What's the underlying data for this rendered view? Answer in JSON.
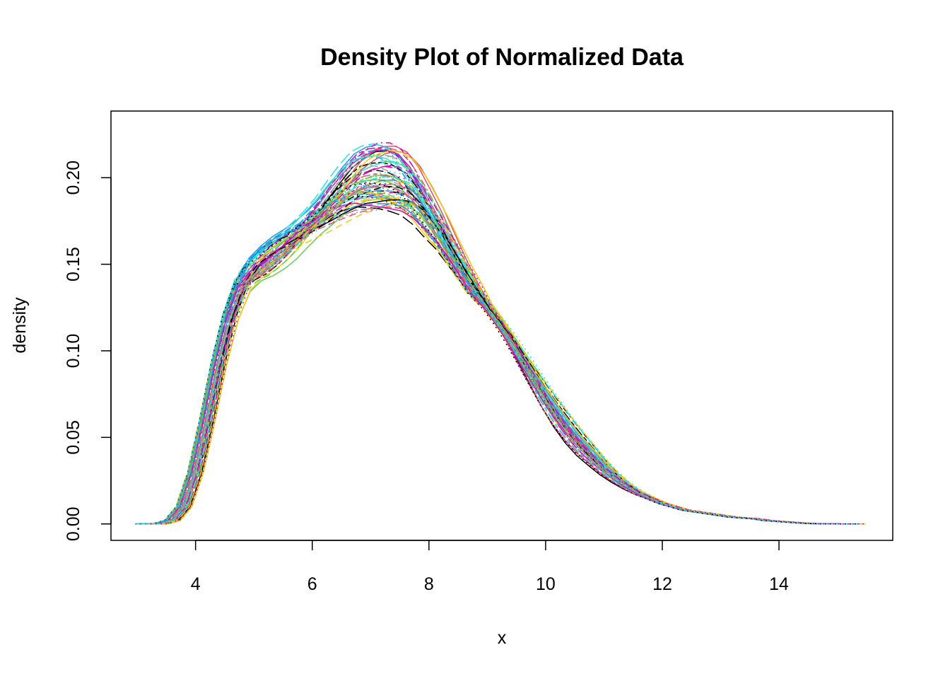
{
  "chart_data": {
    "type": "line",
    "title": "Density Plot of Normalized Data",
    "xlabel": "x",
    "ylabel": "density",
    "xlim": [
      2.55,
      15.95
    ],
    "ylim": [
      -0.0095,
      0.2385
    ],
    "x_ticks": [
      4,
      6,
      8,
      10,
      12,
      14
    ],
    "x_tick_labels": [
      "4",
      "6",
      "8",
      "10",
      "12",
      "14"
    ],
    "y_ticks": [
      0.0,
      0.05,
      0.1,
      0.15,
      0.2
    ],
    "y_tick_labels": [
      "0.00",
      "0.05",
      "0.10",
      "0.15",
      "0.20"
    ],
    "grid": false,
    "legend": "none",
    "series_count": 70,
    "palette": [
      "#000000",
      "#DF536B",
      "#61D04F",
      "#2297E6",
      "#28E2E5",
      "#CD0BBC",
      "#F5C710",
      "#9E9E9E"
    ],
    "line_styles": [
      "solid",
      "dashed",
      "dotted",
      "dotdash",
      "longdash",
      "twodash"
    ],
    "x": [
      3.1,
      3.4,
      3.6,
      3.8,
      4.0,
      4.2,
      4.4,
      4.6,
      4.8,
      5.0,
      5.2,
      5.4,
      5.6,
      5.8,
      6.0,
      6.2,
      6.4,
      6.6,
      6.8,
      7.0,
      7.2,
      7.4,
      7.6,
      7.8,
      8.0,
      8.2,
      8.4,
      8.6,
      8.8,
      9.0,
      9.2,
      9.4,
      9.6,
      9.8,
      10.0,
      10.2,
      10.4,
      10.6,
      10.8,
      11.0,
      11.2,
      11.4,
      11.6,
      11.8,
      12.0,
      12.2,
      12.4,
      12.6,
      12.8,
      13.0,
      13.2,
      13.4,
      13.6,
      13.8,
      14.0,
      14.2,
      14.4,
      14.6,
      14.8,
      15.0,
      15.4
    ],
    "typical_density": [
      0.0,
      0.0001,
      0.002,
      0.01,
      0.03,
      0.06,
      0.093,
      0.12,
      0.138,
      0.147,
      0.152,
      0.157,
      0.162,
      0.168,
      0.174,
      0.18,
      0.187,
      0.193,
      0.198,
      0.2,
      0.201,
      0.2,
      0.197,
      0.19,
      0.18,
      0.17,
      0.158,
      0.146,
      0.135,
      0.126,
      0.117,
      0.107,
      0.096,
      0.085,
      0.074,
      0.064,
      0.055,
      0.047,
      0.04,
      0.033,
      0.027,
      0.022,
      0.018,
      0.015,
      0.012,
      0.01,
      0.008,
      0.007,
      0.006,
      0.005,
      0.004,
      0.0035,
      0.003,
      0.002,
      0.0015,
      0.001,
      0.0005,
      0.0002,
      0.0001,
      0.0,
      0.0
    ]
  }
}
